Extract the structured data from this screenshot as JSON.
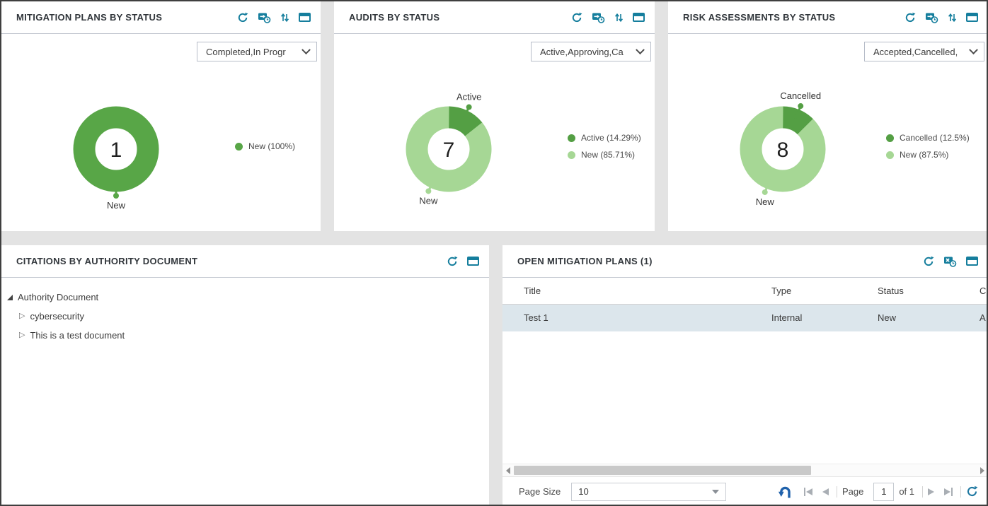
{
  "colors": {
    "accent_teal": "#157e9d",
    "dark_green": "#549f44",
    "light_green": "#a6d795",
    "row_highlight": "#dce6ec",
    "undo_blue": "#1f61ab",
    "page_background": "#e3e3e3"
  },
  "chart_panels": [
    {
      "title": "MITIGATION PLANS BY STATUS",
      "filter_value": "Completed,In Progr"
    },
    {
      "title": "AUDITS BY STATUS",
      "filter_value": "Active,Approving,Ca"
    },
    {
      "title": "RISK ASSESSMENTS BY STATUS",
      "filter_value": "Accepted,Cancelled,"
    }
  ],
  "chart_data": [
    {
      "type": "pie",
      "title": "Mitigation Plans by Status",
      "center_total": "1",
      "legend_position": "right",
      "segments": [
        {
          "label": "New",
          "pct": 100,
          "legend": "New (100%)",
          "color": "#58a647"
        }
      ]
    },
    {
      "type": "pie",
      "title": "Audits by Status",
      "center_total": "7",
      "legend_position": "right",
      "segments": [
        {
          "label": "Active",
          "pct": 14.29,
          "legend": "Active (14.29%)",
          "color": "#549f44"
        },
        {
          "label": "New",
          "pct": 85.71,
          "legend": "New (85.71%)",
          "color": "#a6d795"
        }
      ]
    },
    {
      "type": "pie",
      "title": "Risk Assessments by Status",
      "center_total": "8",
      "legend_position": "right",
      "segments": [
        {
          "label": "Cancelled",
          "pct": 12.5,
          "legend": "Cancelled (12.5%)",
          "color": "#549f44"
        },
        {
          "label": "New",
          "pct": 87.5,
          "legend": "New (87.5%)",
          "color": "#a6d795"
        }
      ]
    }
  ],
  "citations": {
    "title": "CITATIONS BY AUTHORITY DOCUMENT",
    "tree_root": "Authority Document",
    "tree_children": [
      "cybersecurity",
      "This is a test document"
    ]
  },
  "open_plans": {
    "title": "OPEN MITIGATION PLANS (1)",
    "columns": {
      "title": "Title",
      "type": "Type",
      "status": "Status",
      "clipped": "C"
    },
    "row": {
      "title": "Test 1",
      "type": "Internal",
      "status": "New",
      "clipped": "A"
    },
    "footer": {
      "page_size_label": "Page Size",
      "page_size_value": "10",
      "page_label": "Page",
      "page_value": "1",
      "of_label": "of 1"
    }
  }
}
